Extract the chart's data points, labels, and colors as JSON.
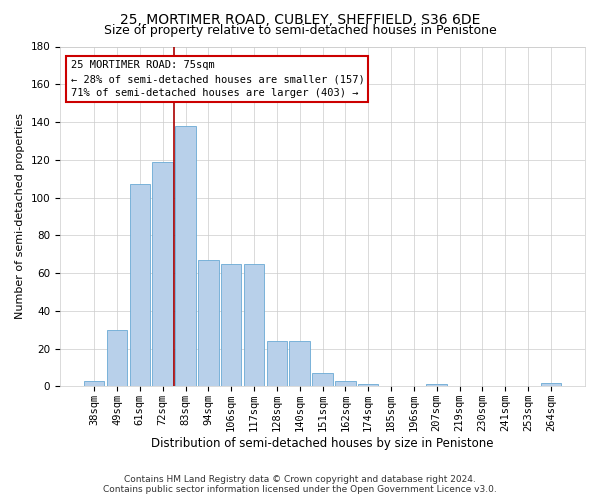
{
  "title": "25, MORTIMER ROAD, CUBLEY, SHEFFIELD, S36 6DE",
  "subtitle": "Size of property relative to semi-detached houses in Penistone",
  "xlabel": "Distribution of semi-detached houses by size in Penistone",
  "ylabel": "Number of semi-detached properties",
  "categories": [
    "38sqm",
    "49sqm",
    "61sqm",
    "72sqm",
    "83sqm",
    "94sqm",
    "106sqm",
    "117sqm",
    "128sqm",
    "140sqm",
    "151sqm",
    "162sqm",
    "174sqm",
    "185sqm",
    "196sqm",
    "207sqm",
    "219sqm",
    "230sqm",
    "241sqm",
    "253sqm",
    "264sqm"
  ],
  "values": [
    3,
    30,
    107,
    119,
    138,
    67,
    65,
    65,
    24,
    24,
    7,
    3,
    1,
    0,
    0,
    1,
    0,
    0,
    0,
    0,
    2
  ],
  "bar_color": "#b8d0ea",
  "bar_edge_color": "#6aaad4",
  "ylim": [
    0,
    180
  ],
  "yticks": [
    0,
    20,
    40,
    60,
    80,
    100,
    120,
    140,
    160,
    180
  ],
  "property_label": "25 MORTIMER ROAD: 75sqm",
  "pct_smaller": 28,
  "pct_larger": 71,
  "count_smaller": 157,
  "count_larger": 403,
  "vline_index": 3.5,
  "annotation_box_color": "#ffffff",
  "annotation_box_edge": "#cc0000",
  "vline_color": "#aa0000",
  "footer1": "Contains HM Land Registry data © Crown copyright and database right 2024.",
  "footer2": "Contains public sector information licensed under the Open Government Licence v3.0.",
  "title_fontsize": 10,
  "subtitle_fontsize": 9,
  "xlabel_fontsize": 8.5,
  "ylabel_fontsize": 8,
  "tick_fontsize": 7.5,
  "annotation_fontsize": 7.5,
  "footer_fontsize": 6.5
}
